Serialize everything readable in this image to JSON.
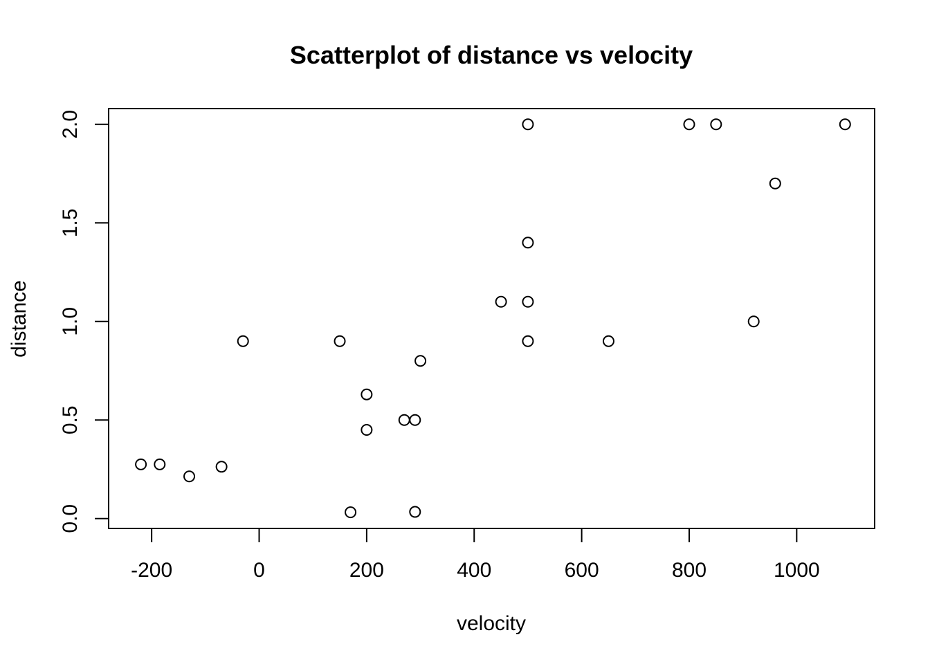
{
  "chart_data": {
    "type": "scatter",
    "title": "Scatterplot of distance vs velocity",
    "xlabel": "velocity",
    "ylabel": "distance",
    "xlim": [
      -280,
      1145
    ],
    "ylim": [
      -0.05,
      2.08
    ],
    "xticks": [
      -200,
      0,
      200,
      400,
      600,
      800,
      1000
    ],
    "xtick_labels": [
      "-200",
      "0",
      "200",
      "400",
      "600",
      "800",
      "1000"
    ],
    "yticks": [
      0.0,
      0.5,
      1.0,
      1.5,
      2.0
    ],
    "ytick_labels": [
      "0.0",
      "0.5",
      "1.0",
      "1.5",
      "2.0"
    ],
    "grid": false,
    "marker": "open-circle",
    "points": [
      {
        "x": 170,
        "y": 0.032
      },
      {
        "x": 290,
        "y": 0.034
      },
      {
        "x": -130,
        "y": 0.214
      },
      {
        "x": -70,
        "y": 0.263
      },
      {
        "x": -185,
        "y": 0.275
      },
      {
        "x": -220,
        "y": 0.275
      },
      {
        "x": 200,
        "y": 0.45
      },
      {
        "x": 290,
        "y": 0.5
      },
      {
        "x": 270,
        "y": 0.5
      },
      {
        "x": 200,
        "y": 0.63
      },
      {
        "x": 300,
        "y": 0.8
      },
      {
        "x": -30,
        "y": 0.9
      },
      {
        "x": 650,
        "y": 0.9
      },
      {
        "x": 150,
        "y": 0.9
      },
      {
        "x": 500,
        "y": 0.9
      },
      {
        "x": 920,
        "y": 1.0
      },
      {
        "x": 450,
        "y": 1.1
      },
      {
        "x": 500,
        "y": 1.1
      },
      {
        "x": 500,
        "y": 1.4
      },
      {
        "x": 960,
        "y": 1.7
      },
      {
        "x": 500,
        "y": 2.0
      },
      {
        "x": 850,
        "y": 2.0
      },
      {
        "x": 800,
        "y": 2.0
      },
      {
        "x": 1090,
        "y": 2.0
      }
    ]
  }
}
